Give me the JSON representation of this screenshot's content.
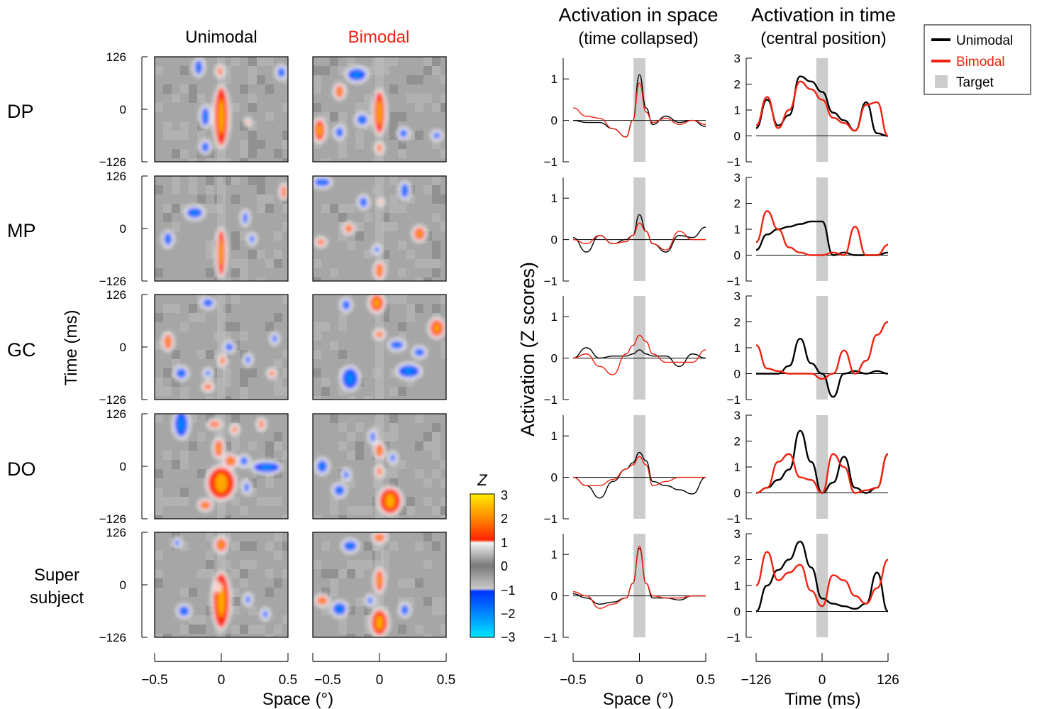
{
  "columns": {
    "unimodal": "Unimodal",
    "bimodal": "Bimodal",
    "space_title": "Activation in space",
    "space_sub": "(time collapsed)",
    "time_title": "Activation in time",
    "time_sub": "(central position)"
  },
  "rows": [
    "DP",
    "MP",
    "GC",
    "DO"
  ],
  "super_row": [
    "Super",
    "subject"
  ],
  "map_axes": {
    "ylabel": "Time (ms)",
    "xlabel": "Space (°)",
    "yticks": [
      "126",
      "0",
      "−126"
    ],
    "xticks": [
      "−0.5",
      "0",
      "0.5"
    ]
  },
  "colorbar": {
    "label": "Z",
    "ticks": [
      "3",
      "2",
      "1",
      "0",
      "−1",
      "−2",
      "−3"
    ],
    "colors": {
      "hi": "#ffee00",
      "mid_hi": "#ff3300",
      "neutral": "#9a9a9a",
      "mid_lo": "#0033ff",
      "lo": "#00e0ff"
    }
  },
  "shared_ylabel": "Activation (Z scores)",
  "space_axes": {
    "xlabel": "Space (°)",
    "xticks": [
      "−0.5",
      "0",
      "0.5"
    ],
    "yticks": [
      "1",
      "0",
      "−1"
    ],
    "xlim": [
      -0.5,
      0.5
    ],
    "ylim": [
      -1,
      1.5
    ]
  },
  "time_axes": {
    "xlabel": "Time (ms)",
    "xticks": [
      "−126",
      "0",
      "126"
    ],
    "yticks": [
      "3",
      "2",
      "1",
      "0",
      "−1"
    ],
    "xlim": [
      -126,
      126
    ],
    "ylim": [
      -1,
      3
    ]
  },
  "legend": {
    "unimodal": "Unimodal",
    "bimodal": "Bimodal",
    "target": "Target"
  },
  "colors": {
    "unimodal": "#000000",
    "bimodal": "#ee2211",
    "target": "#cccccc"
  },
  "chart_data": [
    {
      "type": "line",
      "title": "Activation in space",
      "xlabel": "Space (°)",
      "xlim": [
        -0.5,
        0.5
      ],
      "ylim": [
        -1,
        1.5
      ],
      "x": [
        -0.5,
        -0.4,
        -0.3,
        -0.2,
        -0.1,
        -0.05,
        0,
        0.05,
        0.1,
        0.2,
        0.3,
        0.4,
        0.5
      ],
      "panels": [
        {
          "row": "DP",
          "series": [
            {
              "name": "Unimodal",
              "values": [
                0.0,
                -0.05,
                -0.05,
                -0.2,
                -0.4,
                0.0,
                1.1,
                0.3,
                -0.1,
                0.1,
                -0.05,
                0.0,
                -0.15
              ]
            },
            {
              "name": "Bimodal",
              "values": [
                0.3,
                0.1,
                0.05,
                -0.2,
                -0.4,
                0.0,
                0.9,
                0.2,
                -0.05,
                0.05,
                -0.1,
                0.0,
                -0.1
              ]
            }
          ]
        },
        {
          "row": "MP",
          "series": [
            {
              "name": "Unimodal",
              "values": [
                0.05,
                -0.3,
                0.1,
                -0.1,
                0.0,
                0.1,
                0.6,
                0.2,
                -0.1,
                -0.3,
                0.1,
                0.05,
                0.3
              ]
            },
            {
              "name": "Bimodal",
              "values": [
                0.0,
                -0.1,
                0.1,
                -0.1,
                -0.05,
                0.1,
                0.4,
                0.2,
                -0.1,
                -0.25,
                0.2,
                0.0,
                0.0
              ]
            }
          ]
        },
        {
          "row": "GC",
          "series": [
            {
              "name": "Unimodal",
              "values": [
                0.0,
                0.25,
                0.0,
                0.05,
                0.05,
                0.1,
                0.2,
                0.1,
                0.05,
                0.05,
                -0.2,
                0.1,
                0.0
              ]
            },
            {
              "name": "Bimodal",
              "values": [
                0.0,
                0.1,
                -0.2,
                -0.4,
                0.1,
                0.3,
                0.55,
                0.4,
                0.1,
                -0.1,
                -0.1,
                -0.1,
                0.2
              ]
            }
          ]
        },
        {
          "row": "DO",
          "series": [
            {
              "name": "Unimodal",
              "values": [
                0.0,
                -0.2,
                -0.5,
                -0.1,
                0.2,
                0.35,
                0.6,
                0.4,
                -0.1,
                -0.2,
                -0.3,
                -0.4,
                0.0
              ]
            },
            {
              "name": "Bimodal",
              "values": [
                0.0,
                -0.2,
                -0.2,
                -0.05,
                0.2,
                0.3,
                0.5,
                0.3,
                -0.2,
                -0.1,
                0.0,
                0.0,
                0.0
              ]
            }
          ]
        },
        {
          "row": "Super subject",
          "series": [
            {
              "name": "Unimodal",
              "values": [
                0.05,
                -0.05,
                -0.2,
                -0.15,
                -0.05,
                0.3,
                1.15,
                0.3,
                -0.05,
                -0.05,
                -0.1,
                0.0,
                0.0
              ]
            },
            {
              "name": "Bimodal",
              "values": [
                0.1,
                0.0,
                -0.3,
                -0.2,
                -0.05,
                0.3,
                1.2,
                0.3,
                0.0,
                -0.05,
                -0.05,
                0.0,
                0.0
              ]
            }
          ]
        }
      ]
    },
    {
      "type": "line",
      "title": "Activation in time",
      "xlabel": "Time (ms)",
      "xlim": [
        -126,
        126
      ],
      "ylim": [
        -1,
        3
      ],
      "x": [
        -126,
        -105,
        -84,
        -63,
        -42,
        -21,
        0,
        21,
        42,
        63,
        84,
        105,
        126
      ],
      "panels": [
        {
          "row": "DP",
          "series": [
            {
              "name": "Unimodal",
              "values": [
                0.3,
                1.4,
                0.4,
                0.8,
                2.3,
                2.1,
                1.7,
                0.9,
                0.6,
                0.2,
                1.3,
                0.1,
                0.0
              ]
            },
            {
              "name": "Bimodal",
              "values": [
                0.4,
                1.5,
                0.3,
                1.0,
                2.1,
                1.8,
                1.4,
                0.7,
                0.5,
                0.2,
                1.2,
                1.3,
                0.0
              ]
            }
          ]
        },
        {
          "row": "MP",
          "series": [
            {
              "name": "Unimodal",
              "values": [
                0.2,
                0.8,
                1.0,
                1.1,
                1.2,
                1.3,
                1.3,
                0.0,
                0.1,
                0.0,
                0.0,
                0.0,
                0.1
              ]
            },
            {
              "name": "Bimodal",
              "values": [
                0.5,
                1.7,
                1.0,
                0.3,
                0.1,
                0.0,
                0.0,
                0.1,
                0.0,
                1.1,
                0.0,
                0.0,
                0.4
              ]
            }
          ]
        },
        {
          "row": "GC",
          "series": [
            {
              "name": "Unimodal",
              "values": [
                0.0,
                0.0,
                0.0,
                0.3,
                1.35,
                0.4,
                0.0,
                -0.9,
                0.0,
                0.1,
                0.0,
                0.1,
                0.0
              ]
            },
            {
              "name": "Bimodal",
              "values": [
                1.1,
                0.2,
                0.1,
                0.0,
                0.0,
                0.0,
                -0.2,
                0.0,
                0.9,
                0.0,
                0.5,
                1.5,
                2.0
              ]
            }
          ]
        },
        {
          "row": "DO",
          "series": [
            {
              "name": "Unimodal",
              "values": [
                0.0,
                0.2,
                0.5,
                0.9,
                2.4,
                1.2,
                0.0,
                0.4,
                1.4,
                0.2,
                0.0,
                0.2,
                1.5
              ]
            },
            {
              "name": "Bimodal",
              "values": [
                0.0,
                0.2,
                1.2,
                1.5,
                0.6,
                0.5,
                0.0,
                1.5,
                1.0,
                0.0,
                0.1,
                0.2,
                1.5
              ]
            }
          ]
        },
        {
          "row": "Super subject",
          "series": [
            {
              "name": "Unimodal",
              "values": [
                0.0,
                1.0,
                1.6,
                2.0,
                2.7,
                1.7,
                0.5,
                0.3,
                0.2,
                0.1,
                0.3,
                1.5,
                0.0
              ]
            },
            {
              "name": "Bimodal",
              "values": [
                1.0,
                2.3,
                1.2,
                1.5,
                1.8,
                0.8,
                0.2,
                1.4,
                1.2,
                0.6,
                0.3,
                0.9,
                2.0
              ]
            }
          ]
        }
      ]
    }
  ]
}
